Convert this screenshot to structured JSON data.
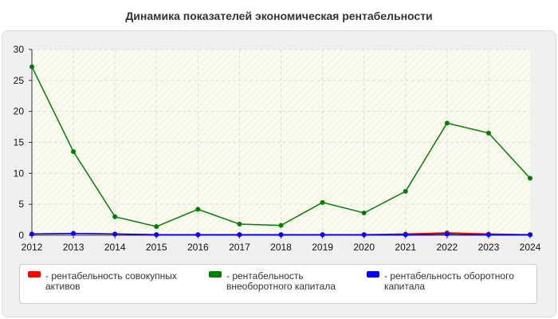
{
  "chart_data": {
    "type": "line",
    "title": "Динамика показателей экономическая рентабельности",
    "xlabel": "",
    "ylabel": "",
    "categories": [
      "2012",
      "2013",
      "2014",
      "2015",
      "2016",
      "2017",
      "2018",
      "2019",
      "2020",
      "2021",
      "2022",
      "2023",
      "2024"
    ],
    "y_ticks": [
      "0",
      "5",
      "10",
      "15",
      "20",
      "25",
      "30"
    ],
    "ylim": [
      0,
      30
    ],
    "grid": true,
    "legend_position": "bottom",
    "series": [
      {
        "name": "- рентабельность совокупных активов",
        "color": "#ff0000",
        "values": [
          0.2,
          0.3,
          0.2,
          0.1,
          0.1,
          0.1,
          0.1,
          0.1,
          0.1,
          0.2,
          0.4,
          0.2,
          0.1
        ]
      },
      {
        "name": "- рентабельность внеоборотного капитала",
        "color": "#008000",
        "values": [
          27.2,
          13.5,
          3.0,
          1.4,
          4.2,
          1.8,
          1.6,
          5.3,
          3.6,
          7.1,
          18.1,
          16.5,
          9.2
        ]
      },
      {
        "name": "- рентабельность оборотного капитала",
        "color": "#0000ff",
        "values": [
          0.2,
          0.3,
          0.2,
          0.1,
          0.1,
          0.1,
          0.1,
          0.1,
          0.1,
          0.1,
          0.2,
          0.1,
          0.1
        ]
      }
    ]
  },
  "legend": {
    "item1_line1": "- рентабельность совокупных",
    "item1_line2": "активов",
    "item2_line1": "- рентабельность",
    "item2_line2": "внеоборотного капитала",
    "item3_line1": "- рентабельность оборотного",
    "item3_line2": "капитала"
  }
}
